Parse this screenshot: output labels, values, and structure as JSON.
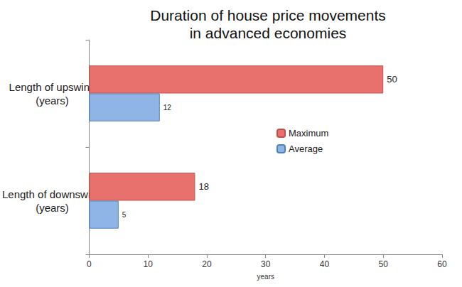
{
  "chart_data": {
    "type": "bar",
    "orientation": "horizontal",
    "title": "Duration of house price movements\nin advanced economies",
    "x_label": "years",
    "categories": [
      "Length of upswing\n(years)",
      "Length of downswing\n(years)"
    ],
    "series": [
      {
        "name": "Maximum",
        "color": "#e8716e",
        "values": [
          50,
          18
        ]
      },
      {
        "name": "Average",
        "color": "#8fb5e6",
        "values": [
          12,
          5
        ]
      }
    ],
    "xlim": [
      0,
      60
    ],
    "xticks": [
      0,
      10,
      20,
      30,
      40,
      50,
      60
    ],
    "grid": false,
    "legend": "right",
    "data_labels": true
  }
}
